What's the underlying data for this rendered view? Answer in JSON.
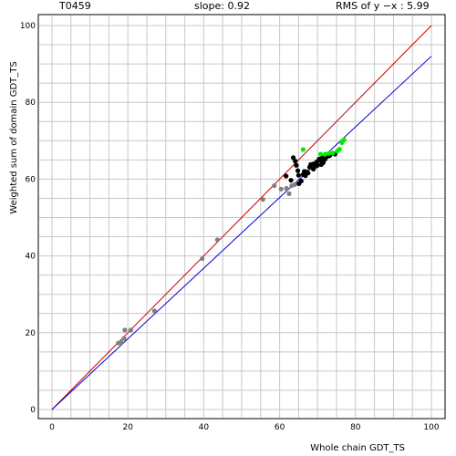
{
  "header": {
    "target": "T0459",
    "slope": "slope: 0.92",
    "rms": "RMS of  y −x : 5.99"
  },
  "chart_data": {
    "type": "scatter",
    "title": "",
    "xlabel": "Whole chain GDT_TS",
    "ylabel": "Weighted sum of domain GDT_TS",
    "xlim": [
      0,
      100
    ],
    "ylim": [
      0,
      100
    ],
    "xticks": [
      "0",
      "20",
      "40",
      "60",
      "80",
      "100"
    ],
    "yticks": [
      "0",
      "20",
      "40",
      "60",
      "80",
      "100"
    ],
    "grid": true,
    "colors": {
      "gray_points": "#808080",
      "black_points": "#000000",
      "green_points": "#00ee00",
      "diagonal": "#cc0000",
      "fit_line": "#0000cc",
      "grid": "#c8c8c8"
    },
    "lines": [
      {
        "role": "y=x",
        "color": "#cc0000",
        "x": [
          0,
          100
        ],
        "y": [
          0,
          100
        ]
      },
      {
        "role": "fit",
        "color": "#0000cc",
        "x": [
          0,
          100
        ],
        "y": [
          0,
          92
        ]
      }
    ],
    "series": [
      {
        "color": "#808080",
        "points": [
          [
            17.5,
            17.3
          ],
          [
            18.2,
            17.5
          ],
          [
            19.0,
            18.5
          ],
          [
            19.2,
            20.7
          ],
          [
            20.8,
            20.7
          ],
          [
            27.0,
            25.7
          ],
          [
            39.6,
            39.3
          ],
          [
            43.6,
            44.2
          ],
          [
            55.6,
            54.7
          ],
          [
            58.6,
            58.3
          ],
          [
            60.4,
            57.4
          ],
          [
            61.8,
            57.6
          ],
          [
            62.5,
            56.2
          ],
          [
            63.2,
            58.3
          ],
          [
            64.0,
            58.6
          ]
        ]
      },
      {
        "color": "#000000",
        "points": [
          [
            61.7,
            60.8
          ],
          [
            63.0,
            59.7
          ],
          [
            63.6,
            65.6
          ],
          [
            64.1,
            64.7
          ],
          [
            64.4,
            63.6
          ],
          [
            65.0,
            61.0
          ],
          [
            65.1,
            58.8
          ],
          [
            65.7,
            59.5
          ],
          [
            66.2,
            61.2
          ],
          [
            66.5,
            62.0
          ],
          [
            67.1,
            61.9
          ],
          [
            67.5,
            61.6
          ],
          [
            67.9,
            63.1
          ],
          [
            68.2,
            63.8
          ],
          [
            68.6,
            63.0
          ],
          [
            69.0,
            64.0
          ],
          [
            69.4,
            63.3
          ],
          [
            69.8,
            64.5
          ],
          [
            70.0,
            63.6
          ],
          [
            70.4,
            65.2
          ],
          [
            70.8,
            64.9
          ],
          [
            71.2,
            65.6
          ],
          [
            71.5,
            64.3
          ],
          [
            72.0,
            65.2
          ],
          [
            72.6,
            65.9
          ],
          [
            73.2,
            66.1
          ],
          [
            74.0,
            66.7
          ],
          [
            74.6,
            66.5
          ],
          [
            68.9,
            62.6
          ],
          [
            71.0,
            63.8
          ],
          [
            66.8,
            60.9
          ],
          [
            64.8,
            62.2
          ]
        ]
      },
      {
        "color": "#00ee00",
        "points": [
          [
            66.2,
            67.7
          ],
          [
            70.8,
            66.5
          ],
          [
            72.0,
            66.5
          ],
          [
            73.0,
            66.7
          ],
          [
            74.0,
            66.8
          ],
          [
            75.2,
            67.3
          ],
          [
            75.8,
            67.8
          ],
          [
            76.4,
            69.5
          ],
          [
            76.6,
            70.0
          ],
          [
            77.0,
            70.2
          ]
        ]
      }
    ]
  }
}
